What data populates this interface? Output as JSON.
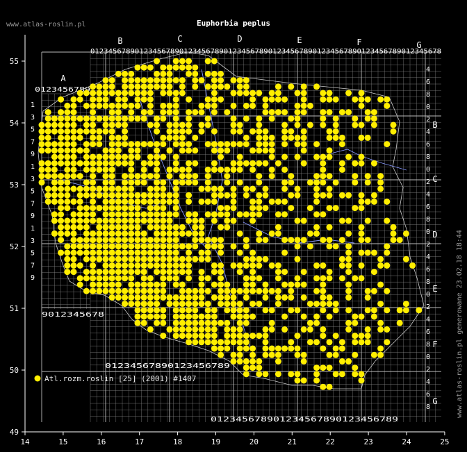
{
  "title": "Euphorbia peplus",
  "site": "www.atlas-roslin.pl",
  "vertical_note": "www.atlas-roslin.pl generowane 23.02.18 18:44",
  "legend": {
    "label": "Atl.rozm.roslin [25] (2001) #1407",
    "color": "#ffee00"
  },
  "colors": {
    "background": "#000000",
    "grid": "#8c8c8c",
    "river": "#8899ff",
    "border": "#cccccc",
    "dot": "#ffee00"
  },
  "axes": {
    "x_ticks": [
      "14",
      "15",
      "16",
      "17",
      "18",
      "19",
      "20",
      "21",
      "22",
      "23",
      "24",
      "25"
    ],
    "y_ticks": [
      "55",
      "54",
      "53",
      "52",
      "51",
      "50",
      "49"
    ]
  },
  "grid_labels": {
    "top_digits": "0123456789012345678901234567890123456789012345678901234567890123456789012345678",
    "col_letters": [
      "A",
      "B",
      "C",
      "D",
      "E",
      "F",
      "G"
    ],
    "row_letters": [
      "B",
      "C",
      "D",
      "E",
      "F",
      "G"
    ],
    "left_digits": [
      "1",
      "3",
      "5",
      "7",
      "9",
      "1",
      "3",
      "5",
      "7",
      "9",
      "1",
      "3",
      "5",
      "7",
      "9"
    ],
    "right_digits": [
      "4",
      "6",
      "8",
      "0",
      "2",
      "4",
      "6",
      "8",
      "0",
      "2",
      "4",
      "6",
      "8",
      "0",
      "2",
      "4",
      "6",
      "8",
      "0",
      "2",
      "4",
      "6",
      "8",
      "0",
      "2",
      "4",
      "6",
      "8"
    ]
  }
}
